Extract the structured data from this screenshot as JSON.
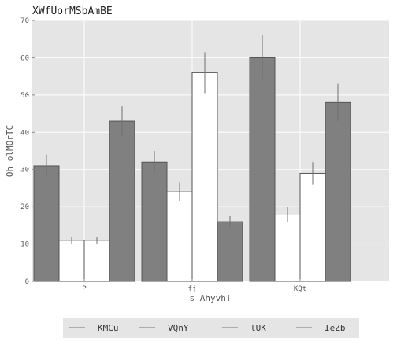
{
  "chart_data": {
    "type": "bar",
    "title": "XWfUorMSbAmBE",
    "xlabel": "s AhyvhT",
    "ylabel": "Qh olMQrTC",
    "categories": [
      "P",
      "fj",
      "KQt"
    ],
    "ylim": [
      0,
      70
    ],
    "yticks": [
      0,
      10,
      20,
      30,
      40,
      50,
      60,
      70
    ],
    "grid": true,
    "legend_position": "bottom",
    "series": [
      {
        "name": "KMCu",
        "color": "#808080",
        "values": [
          31,
          32,
          60
        ],
        "errors": [
          3,
          3,
          6
        ]
      },
      {
        "name": "VQnY",
        "color": "#ffffff",
        "values": [
          11,
          24,
          18
        ],
        "errors": [
          1,
          2.5,
          2
        ]
      },
      {
        "name": "lUK",
        "color": "#ffffff",
        "values": [
          11,
          56,
          29
        ],
        "errors": [
          1,
          5.5,
          3
        ]
      },
      {
        "name": "IeZb",
        "color": "#808080",
        "values": [
          43,
          16,
          48
        ],
        "errors": [
          4,
          1.5,
          5
        ]
      }
    ]
  }
}
